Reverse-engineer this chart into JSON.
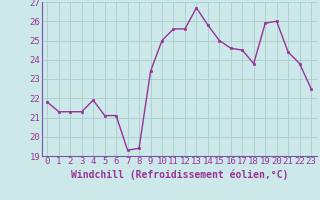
{
  "x": [
    0,
    1,
    2,
    3,
    4,
    5,
    6,
    7,
    8,
    9,
    10,
    11,
    12,
    13,
    14,
    15,
    16,
    17,
    18,
    19,
    20,
    21,
    22,
    23
  ],
  "y": [
    21.8,
    21.3,
    21.3,
    21.3,
    21.9,
    21.1,
    21.1,
    19.3,
    19.4,
    23.4,
    25.0,
    25.6,
    25.6,
    26.7,
    25.8,
    25.0,
    24.6,
    24.5,
    23.8,
    25.9,
    26.0,
    24.4,
    23.8,
    22.5
  ],
  "line_color": "#993399",
  "marker": "s",
  "marker_size": 2.0,
  "bg_color": "#cce8e8",
  "grid_color": "#aacccc",
  "xlabel": "Windchill (Refroidissement éolien,°C)",
  "ylim": [
    19,
    27
  ],
  "xlim_min": -0.5,
  "xlim_max": 23.5,
  "yticks": [
    19,
    20,
    21,
    22,
    23,
    24,
    25,
    26,
    27
  ],
  "xticks": [
    0,
    1,
    2,
    3,
    4,
    5,
    6,
    7,
    8,
    9,
    10,
    11,
    12,
    13,
    14,
    15,
    16,
    17,
    18,
    19,
    20,
    21,
    22,
    23
  ],
  "xlabel_fontsize": 7,
  "tick_fontsize": 6.5,
  "line_width": 1.0,
  "spine_color": "#7755aa",
  "tick_color": "#7755aa",
  "label_color": "#993399"
}
